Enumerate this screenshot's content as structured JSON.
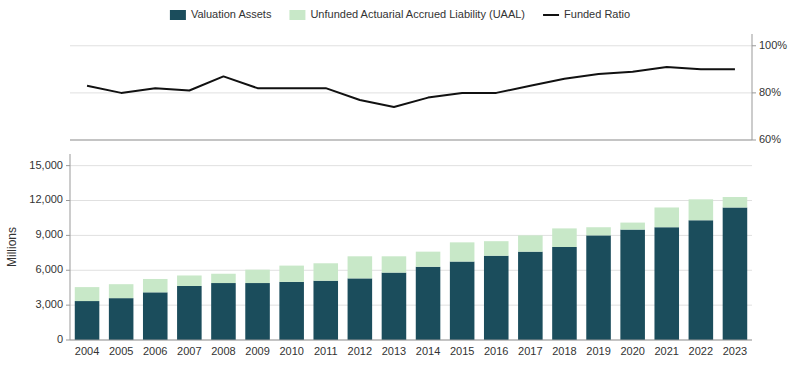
{
  "chart_data": [
    {
      "type": "line",
      "categories": [
        2004,
        2005,
        2006,
        2007,
        2008,
        2009,
        2010,
        2011,
        2012,
        2013,
        2014,
        2015,
        2016,
        2017,
        2018,
        2019,
        2020,
        2021,
        2022,
        2023
      ],
      "series": [
        {
          "name": "Funded Ratio",
          "color": "#111111",
          "values": [
            83,
            80,
            82,
            81,
            87,
            82,
            82,
            82,
            77,
            74,
            78,
            80,
            80,
            83,
            86,
            88,
            89,
            91,
            90,
            90
          ]
        }
      ],
      "ylim": [
        60,
        105
      ],
      "yticks": [
        {
          "value": 60,
          "label": "60%"
        },
        {
          "value": 80,
          "label": "80%"
        },
        {
          "value": 100,
          "label": "100%"
        }
      ],
      "grid": true,
      "tick_labels": "y",
      "legend": "top"
    },
    {
      "type": "bar",
      "stacked": true,
      "ylabel": "Millions",
      "categories": [
        2004,
        2005,
        2006,
        2007,
        2008,
        2009,
        2010,
        2011,
        2012,
        2013,
        2014,
        2015,
        2016,
        2017,
        2018,
        2019,
        2020,
        2021,
        2022,
        2023
      ],
      "series": [
        {
          "name": "Valuation Assets",
          "color": "#1b4d5c",
          "values": [
            3350,
            3600,
            4100,
            4650,
            4900,
            4900,
            5000,
            5100,
            5300,
            5800,
            6300,
            6750,
            7250,
            7600,
            8000,
            9000,
            9500,
            9700,
            10300,
            11400
          ]
        },
        {
          "name": "Unfunded Actuarial Accrued Liability (UAAL)",
          "color": "#c8e8c8",
          "values": [
            1200,
            1200,
            1150,
            900,
            800,
            1150,
            1400,
            1500,
            1900,
            1400,
            1300,
            1650,
            1250,
            1400,
            1600,
            700,
            600,
            1700,
            1800,
            900
          ]
        }
      ],
      "ylim": [
        0,
        16000
      ],
      "yticks": [
        0,
        {
          "value": 3000,
          "label": "3,000"
        },
        {
          "value": 6000,
          "label": "6,000"
        },
        {
          "value": 9000,
          "label": "9,000"
        },
        {
          "value": 12000,
          "label": "12,000"
        },
        {
          "value": 15000,
          "label": "15,000"
        }
      ],
      "grid": true,
      "legend": "top"
    }
  ]
}
